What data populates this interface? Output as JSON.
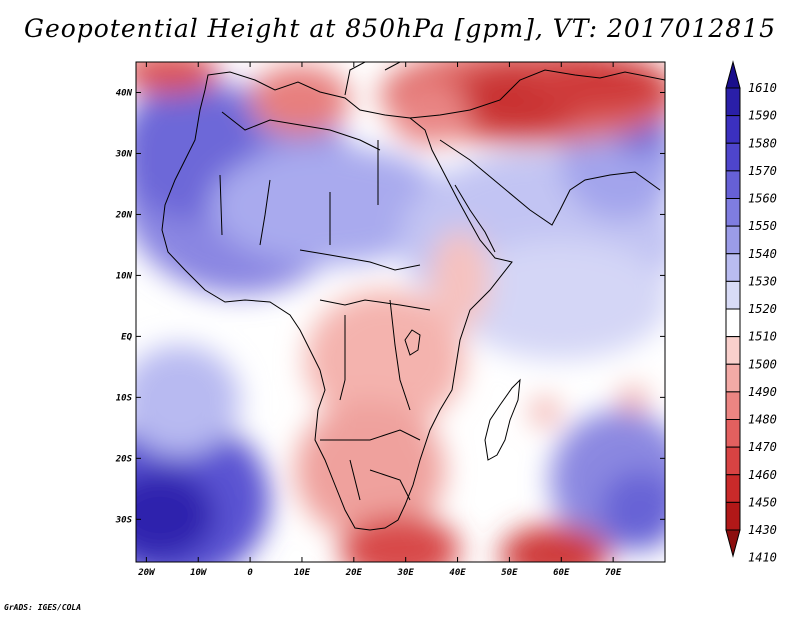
{
  "title": "Geopotential Height at 850hPa [gpm], VT: 2017012815",
  "credit": "GrADS: IGES/COLA",
  "lat_labels": [
    "40N",
    "30N",
    "20N",
    "10N",
    "EQ",
    "10S",
    "20S",
    "30S"
  ],
  "lat_values": [
    40,
    30,
    20,
    10,
    0,
    -10,
    -20,
    -30
  ],
  "lon_labels": [
    "20W",
    "10W",
    "0",
    "10E",
    "20E",
    "30E",
    "40E",
    "50E",
    "60E",
    "70E"
  ],
  "lon_values": [
    -20,
    -10,
    0,
    10,
    20,
    30,
    40,
    50,
    60,
    70
  ],
  "map_extent": {
    "lon_min": -22,
    "lon_max": 80,
    "lat_min": -37,
    "lat_max": 45
  },
  "colorbar": {
    "top_value": "1610",
    "levels": [
      "1590",
      "1580",
      "1570",
      "1560",
      "1550",
      "1540",
      "1530",
      "1520",
      "1510",
      "1500",
      "1490",
      "1480",
      "1470",
      "1460",
      "1450",
      "1430",
      "1410"
    ],
    "colors": [
      "#1a0e8c",
      "#2a1fa8",
      "#3b30bf",
      "#4e45cc",
      "#6660d6",
      "#7f7de0",
      "#9b9ce8",
      "#b9bcf0",
      "#d8dbf6",
      "#ffffff",
      "#f9d0cc",
      "#f3aaa6",
      "#ec8582",
      "#e3605f",
      "#d84343",
      "#c92a2a",
      "#b11818",
      "#8c0e0e"
    ]
  }
}
